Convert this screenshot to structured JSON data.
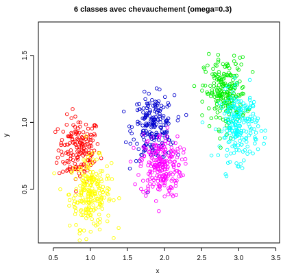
{
  "chart_data": {
    "type": "scatter",
    "title": "6 classes avec chevauchement (omega=0.3)",
    "xlabel": "x",
    "ylabel": "y",
    "xlim": [
      0.3,
      3.55
    ],
    "ylim": [
      0.1,
      1.75
    ],
    "xticks": [
      0.5,
      1.0,
      1.5,
      2.0,
      2.5,
      3.0,
      3.5
    ],
    "xtick_labels": [
      "0.5",
      "1.0",
      "1.5",
      "2.0",
      "2.5",
      "3.0",
      "3.5"
    ],
    "yticks": [
      0.5,
      1.0,
      1.5
    ],
    "ytick_labels": [
      "0.5",
      "1.0",
      "1.5"
    ],
    "grid": false,
    "legend": "none",
    "marker": "open-circle",
    "series": [
      {
        "color": "#ff0000",
        "center": [
          0.85,
          0.8
        ],
        "spread": [
          0.14,
          0.12
        ],
        "n": 170
      },
      {
        "color": "#ffff00",
        "center": [
          1.0,
          0.47
        ],
        "spread": [
          0.14,
          0.13
        ],
        "n": 230
      },
      {
        "color": "#0000cd",
        "center": [
          1.85,
          0.96
        ],
        "spread": [
          0.14,
          0.12
        ],
        "n": 200
      },
      {
        "color": "#ff00ff",
        "center": [
          1.95,
          0.68
        ],
        "spread": [
          0.14,
          0.12
        ],
        "n": 230
      },
      {
        "color": "#00ee00",
        "center": [
          2.82,
          1.22
        ],
        "spread": [
          0.14,
          0.13
        ],
        "n": 220
      },
      {
        "color": "#00ffff",
        "center": [
          3.0,
          0.98
        ],
        "spread": [
          0.13,
          0.13
        ],
        "n": 210
      }
    ]
  }
}
